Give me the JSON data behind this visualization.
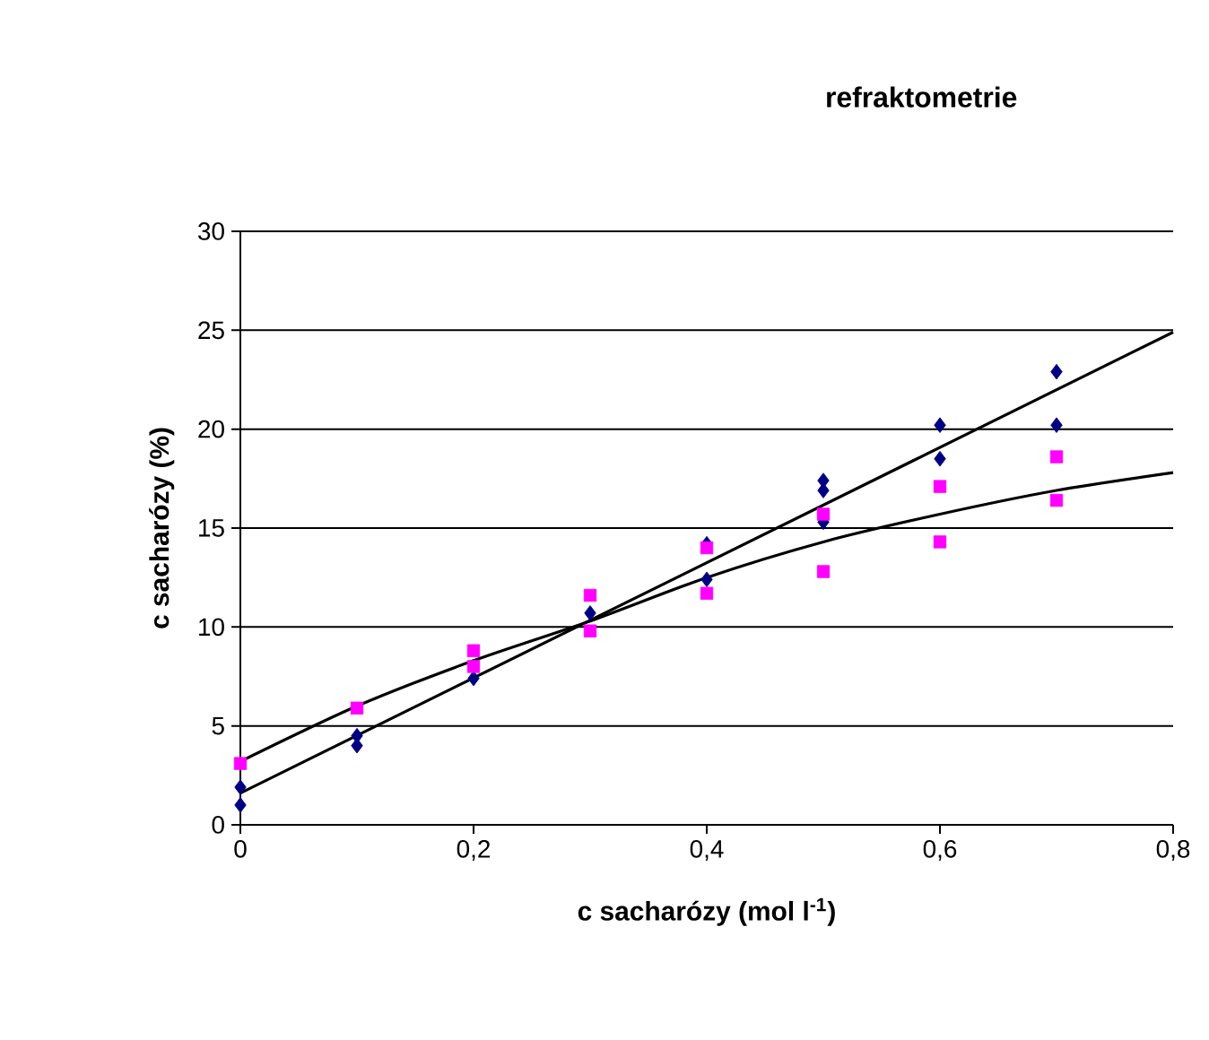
{
  "chart_data": {
    "type": "scatter",
    "title": "refraktometrie",
    "xlabel": "c sacharózy (mol l$^{-1}$)",
    "ylabel": "c sacharózy (%)",
    "xlim": [
      0,
      0.8
    ],
    "ylim": [
      0,
      30
    ],
    "xticks": [
      0,
      {
        "value": 0.2,
        "label": "0,2"
      },
      {
        "value": 0.4,
        "label": "0,4"
      },
      {
        "value": 0.6,
        "label": "0,6"
      },
      {
        "value": 0.8,
        "label": "0,8"
      }
    ],
    "yticks": [
      0,
      5,
      10,
      15,
      20,
      25,
      30
    ],
    "grid": "y",
    "series": [
      {
        "type": "line",
        "marker": "none",
        "color": "#000000",
        "x": [
          0,
          0.8
        ],
        "values": [
          1.6,
          24.9
        ]
      },
      {
        "type": "line",
        "marker": "none",
        "color": "#000000",
        "x": [
          0,
          0.1,
          0.2,
          0.3,
          0.4,
          0.5,
          0.6,
          0.7,
          0.8
        ],
        "values": [
          3.2,
          6.0,
          8.3,
          10.3,
          12.5,
          14.3,
          15.7,
          16.9,
          17.8
        ]
      },
      {
        "marker": "diamond",
        "color": "#000080",
        "x": [
          0,
          0,
          0.1,
          0.1,
          0.2,
          0.3,
          0.4,
          0.4,
          0.5,
          0.5,
          0.5,
          0.6,
          0.6,
          0.7,
          0.7
        ],
        "values": [
          1.9,
          1.0,
          4.5,
          4.0,
          7.4,
          10.7,
          14.2,
          12.4,
          17.4,
          16.9,
          15.3,
          20.2,
          18.5,
          22.9,
          20.2
        ]
      },
      {
        "marker": "square",
        "color": "#ff00ff",
        "x": [
          0,
          0.1,
          0.2,
          0.2,
          0.3,
          0.3,
          0.4,
          0.4,
          0.5,
          0.5,
          0.6,
          0.6,
          0.7,
          0.7
        ],
        "values": [
          3.1,
          5.9,
          8.8,
          8.0,
          11.6,
          9.8,
          14.0,
          11.7,
          15.7,
          12.8,
          17.1,
          14.3,
          18.6,
          16.4
        ]
      }
    ]
  }
}
